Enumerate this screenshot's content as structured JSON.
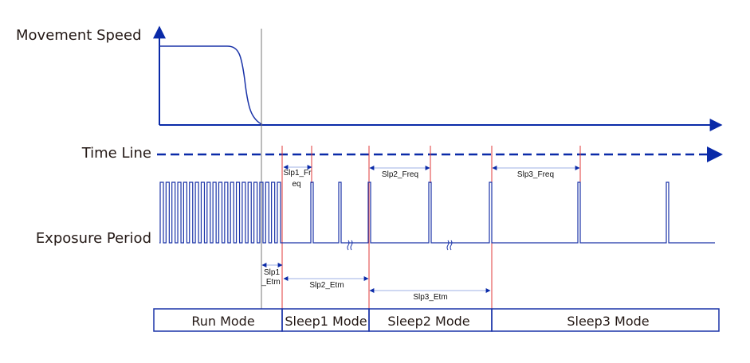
{
  "labels": {
    "movement_speed": "Movement Speed",
    "time_line": "Time Line",
    "exposure_period": "Exposure Period"
  },
  "annotations": {
    "slp1_freq_a": "Slp1_Fr",
    "slp1_freq_b": "eq",
    "slp2_freq": "Slp2_Freq",
    "slp3_freq": "Slp3_Freq",
    "slp1_etm_a": "Slp1",
    "slp1_etm_b": "_Etm",
    "slp2_etm": "Slp2_Etm",
    "slp3_etm": "Slp3_Etm"
  },
  "modes": [
    "Run Mode",
    "Sleep1 Mode",
    "Sleep2 Mode",
    "Sleep3 Mode"
  ],
  "colors": {
    "signal": "#1a33a8",
    "axis": "#0a2aa8",
    "marker": "#e03a3a",
    "dimension": "#9fb0e6"
  }
}
